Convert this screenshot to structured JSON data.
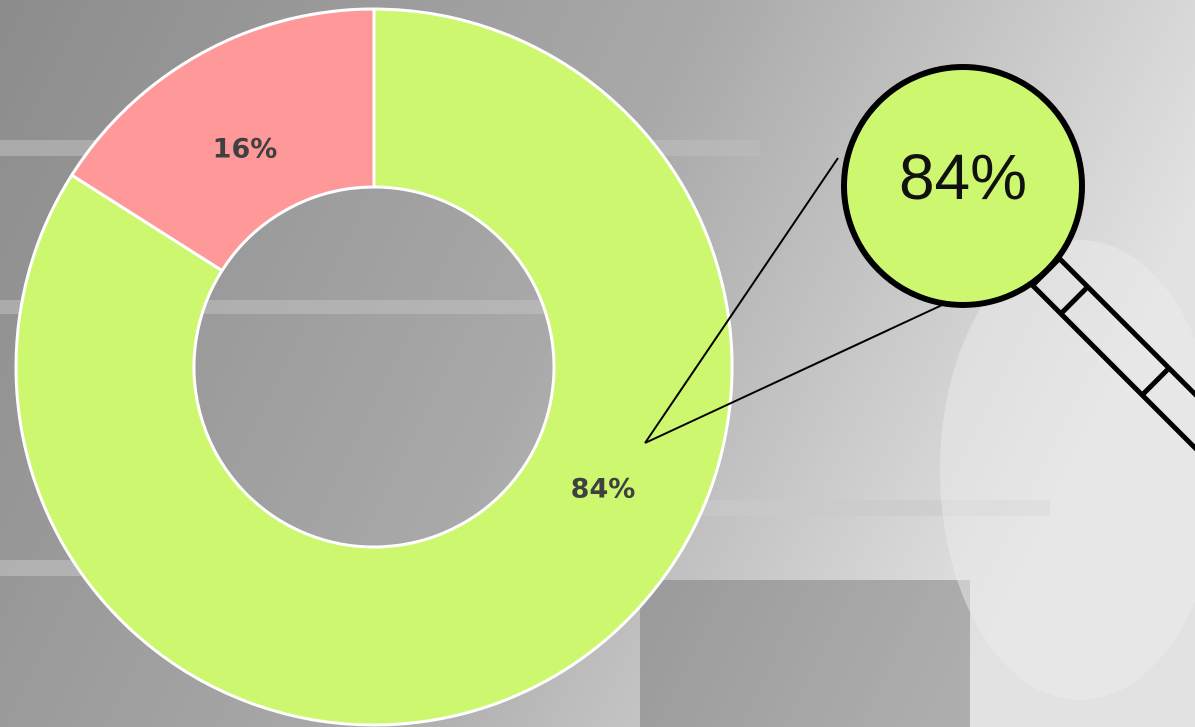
{
  "chart_data": {
    "type": "donut",
    "values": [
      84,
      16
    ],
    "value_labels": [
      "84%",
      "16%"
    ],
    "colors": [
      "#cdf76e",
      "#ff9999"
    ]
  }
}
